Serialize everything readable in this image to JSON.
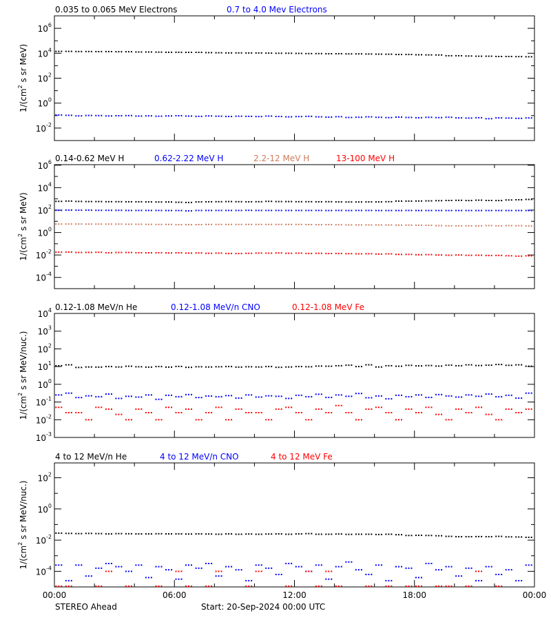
{
  "chart_data": [
    {
      "type": "scatter",
      "yscale": "log",
      "ylabel": "1/(cm^2 s sr MeV)",
      "ylabel_parts": [
        "1/(cm",
        "2",
        " s sr MeV)"
      ],
      "ylim_log10": [
        -3,
        7
      ],
      "ytick_exponents": [
        6,
        4,
        2,
        0,
        -2
      ],
      "series": [
        {
          "name": "0.035 to 0.065 MeV Electrons",
          "color": "#000000",
          "log10_values": [
            4.15,
            4.15,
            4.14,
            4.14,
            4.13,
            4.13,
            4.12,
            4.12,
            4.1,
            4.1,
            4.09,
            4.08,
            4.08,
            4.07,
            4.07,
            4.05,
            4.04,
            4.03,
            4.03,
            4.02,
            4.02,
            4.01,
            4.0,
            4.0,
            3.99,
            3.97,
            3.97,
            3.96,
            3.96,
            3.95,
            3.95,
            3.94,
            3.93,
            3.92,
            3.9,
            3.9,
            3.88,
            3.87,
            3.86,
            3.8,
            3.8,
            3.78,
            3.76,
            3.76,
            3.74,
            3.74,
            3.73,
            3.72
          ]
        },
        {
          "name": "0.7 to 4.0 Mev Electrons",
          "color": "#0000ff",
          "log10_values": [
            -0.95,
            -0.98,
            -1.02,
            -0.99,
            -1.0,
            -1.03,
            -1.01,
            -1.0,
            -1.04,
            -1.02,
            -1.05,
            -1.03,
            -1.01,
            -1.04,
            -1.06,
            -1.03,
            -1.05,
            -1.07,
            -1.05,
            -1.06,
            -1.08,
            -1.04,
            -1.07,
            -1.1,
            -1.08,
            -1.06,
            -1.1,
            -1.12,
            -1.09,
            -1.15,
            -1.13,
            -1.1,
            -1.14,
            -1.16,
            -1.12,
            -1.15,
            -1.17,
            -1.14,
            -1.16,
            -1.13,
            -1.18,
            -1.2,
            -1.17,
            -1.25,
            -1.18,
            -1.2,
            -1.22,
            -1.19
          ]
        }
      ]
    },
    {
      "type": "scatter",
      "yscale": "log",
      "ylabel": "1/(cm^2 s sr MeV)",
      "ylabel_parts": [
        "1/(cm",
        "2",
        " s sr MeV)"
      ],
      "ylim_log10": [
        -5,
        6.05
      ],
      "ytick_exponents": [
        6,
        4,
        2,
        0,
        -2,
        -4
      ],
      "series": [
        {
          "name": "0.14-0.62 MeV H",
          "color": "#000000",
          "log10_values": [
            2.78,
            2.8,
            2.77,
            2.76,
            2.76,
            2.75,
            2.75,
            2.74,
            2.74,
            2.73,
            2.72,
            2.72,
            2.7,
            2.68,
            2.73,
            2.74,
            2.75,
            2.76,
            2.75,
            2.74,
            2.75,
            2.78,
            2.76,
            2.76,
            2.75,
            2.75,
            2.74,
            2.75,
            2.73,
            2.72,
            2.72,
            2.73,
            2.73,
            2.75,
            2.8,
            2.8,
            2.81,
            2.82,
            2.84,
            2.86,
            2.87,
            2.85,
            2.88,
            2.86,
            2.85,
            2.9,
            2.92,
            2.95
          ]
        },
        {
          "name": "0.62-2.22 MeV H",
          "color": "#0000ff",
          "log10_values": [
            1.98,
            2.0,
            1.99,
            1.99,
            1.98,
            1.98,
            1.98,
            1.97,
            1.97,
            1.97,
            1.97,
            1.96,
            1.96,
            1.93,
            1.97,
            1.97,
            1.97,
            1.97,
            1.97,
            1.98,
            1.97,
            1.97,
            1.97,
            1.97,
            1.97,
            1.97,
            1.97,
            1.96,
            1.97,
            1.96,
            1.97,
            1.97,
            1.96,
            1.96,
            1.96,
            1.97,
            1.96,
            1.96,
            1.96,
            1.96,
            1.96,
            1.96,
            1.96,
            1.96,
            1.96,
            1.96,
            1.96,
            1.96
          ]
        },
        {
          "name": "2.2-12 MeV H",
          "color": "#cd7b5c",
          "log10_values": [
            0.76,
            0.76,
            0.76,
            0.75,
            0.75,
            0.75,
            0.75,
            0.74,
            0.74,
            0.73,
            0.72,
            0.72,
            0.7,
            0.7,
            0.71,
            0.72,
            0.72,
            0.72,
            0.72,
            0.72,
            0.72,
            0.72,
            0.72,
            0.72,
            0.72,
            0.71,
            0.7,
            0.7,
            0.69,
            0.68,
            0.68,
            0.68,
            0.67,
            0.67,
            0.66,
            0.66,
            0.65,
            0.64,
            0.62,
            0.6,
            0.6,
            0.6,
            0.59,
            0.62,
            0.6,
            0.62,
            0.61,
            0.58
          ]
        },
        {
          "name": "13-100 MeV H",
          "color": "#ff0000",
          "log10_values": [
            -1.75,
            -1.74,
            -1.78,
            -1.77,
            -1.76,
            -1.8,
            -1.78,
            -1.78,
            -1.8,
            -1.81,
            -1.8,
            -1.82,
            -1.81,
            -1.83,
            -1.82,
            -1.85,
            -1.83,
            -1.86,
            -1.87,
            -1.85,
            -1.83,
            -1.84,
            -1.82,
            -1.85,
            -1.84,
            -1.86,
            -1.85,
            -1.87,
            -1.86,
            -1.88,
            -1.9,
            -1.89,
            -1.92,
            -1.9,
            -1.95,
            -1.95,
            -1.98,
            -1.97,
            -2.0,
            -2.02,
            -2.0,
            -2.03,
            -2.02,
            -2.05,
            -2.04,
            -2.07,
            -2.1,
            -2.08
          ]
        }
      ]
    },
    {
      "type": "scatter",
      "yscale": "log",
      "ylabel": "1/(cm^2 s sr MeV/nuc.)",
      "ylabel_parts": [
        "1/(cm",
        "2",
        " s sr MeV/nuc.)"
      ],
      "ylim_log10": [
        -3,
        4
      ],
      "ytick_exponents": [
        4,
        3,
        2,
        1,
        0,
        -1,
        -2,
        -3
      ],
      "series": [
        {
          "name": "0.12-1.08 MeV/n He",
          "color": "#000000",
          "log10_values": [
            1.05,
            1.1,
            0.95,
            0.98,
            0.97,
            1.0,
            0.98,
            1.02,
            0.99,
            0.97,
            1.0,
            0.97,
            1.01,
            0.96,
            0.99,
            0.98,
            0.99,
            1.0,
            0.97,
            0.99,
            0.98,
            1.0,
            0.96,
            0.98,
            1.0,
            0.99,
            1.03,
            1.02,
            1.05,
            1.08,
            1.0,
            1.1,
            0.98,
            1.05,
            1.02,
            1.07,
            1.04,
            1.06,
            1.03,
            1.08,
            1.05,
            1.1,
            1.06,
            1.08,
            1.12,
            1.07,
            1.1,
            1.02
          ]
        },
        {
          "name": "0.12-1.08 MeV/n CNO",
          "color": "#0000ff",
          "log10_values": [
            -0.6,
            -0.5,
            -0.75,
            -0.65,
            -0.7,
            -0.55,
            -0.8,
            -0.68,
            -0.72,
            -0.6,
            -0.85,
            -0.62,
            -0.7,
            -0.58,
            -0.75,
            -0.66,
            -0.7,
            -0.64,
            -0.78,
            -0.6,
            -0.72,
            -0.65,
            -0.68,
            -0.8,
            -0.62,
            -0.7,
            -0.56,
            -0.74,
            -0.6,
            -0.68,
            -0.52,
            -0.76,
            -0.66,
            -0.82,
            -0.62,
            -0.7,
            -0.6,
            -0.74,
            -0.58,
            -0.66,
            -0.72,
            -0.6,
            -0.68,
            -0.55,
            -0.7,
            -0.62,
            -0.78,
            -0.5
          ]
        },
        {
          "name": "0.12-1.08 MeV Fe",
          "color": "#ff0000",
          "log10_values": [
            -1.3,
            -1.6,
            -1.6,
            -2.0,
            -1.3,
            -1.4,
            -1.7,
            -2.0,
            -1.4,
            -1.6,
            -2.0,
            -1.3,
            -1.6,
            -1.4,
            -2.0,
            -1.6,
            -1.3,
            -2.0,
            -1.4,
            -1.6,
            -1.6,
            -2.0,
            -1.4,
            -1.3,
            -1.6,
            -2.0,
            -1.4,
            -1.6,
            -1.2,
            -1.6,
            -2.0,
            -1.4,
            -1.3,
            -1.6,
            -2.0,
            -1.4,
            -1.6,
            -1.3,
            -1.7,
            -2.0,
            -1.4,
            -1.6,
            -1.3,
            -1.7,
            -2.0,
            -1.4,
            -1.6,
            -1.4
          ]
        }
      ]
    },
    {
      "type": "scatter",
      "yscale": "log",
      "ylabel": "1/(cm^2 s sr MeV/nuc.)",
      "ylabel_parts": [
        "1/(cm",
        "2",
        " s sr MeV/nuc.)"
      ],
      "ylim_log10": [
        -5,
        2.95
      ],
      "ytick_exponents": [
        2,
        0,
        -2,
        -4
      ],
      "series": [
        {
          "name": "4 to 12 MeV/n He",
          "color": "#000000",
          "log10_values": [
            -1.55,
            -1.57,
            -1.58,
            -1.57,
            -1.58,
            -1.6,
            -1.58,
            -1.59,
            -1.6,
            -1.6,
            -1.59,
            -1.6,
            -1.6,
            -1.61,
            -1.6,
            -1.61,
            -1.62,
            -1.6,
            -1.62,
            -1.61,
            -1.62,
            -1.61,
            -1.6,
            -1.62,
            -1.6,
            -1.58,
            -1.62,
            -1.62,
            -1.61,
            -1.63,
            -1.62,
            -1.62,
            -1.64,
            -1.62,
            -1.65,
            -1.7,
            -1.69,
            -1.7,
            -1.72,
            -1.76,
            -1.78,
            -1.78,
            -1.77,
            -1.78,
            -1.76,
            -1.79,
            -1.8,
            -1.82
          ]
        },
        {
          "name": "4 to 12 MeV/n CNO",
          "color": "#0000ff",
          "log10_values": [
            -3.6,
            -4.6,
            -3.6,
            -4.3,
            -3.8,
            -3.5,
            -3.7,
            -4.0,
            -3.6,
            -4.4,
            -3.7,
            -3.9,
            -4.5,
            -3.6,
            -3.8,
            -3.5,
            -4.3,
            -3.7,
            -3.9,
            -4.6,
            -3.6,
            -3.8,
            -4.2,
            -3.5,
            -3.7,
            -4.0,
            -3.6,
            -4.5,
            -3.7,
            -3.4,
            -3.9,
            -4.2,
            -3.6,
            -4.6,
            -3.7,
            -3.8,
            -4.4,
            -3.5,
            -3.9,
            -3.7,
            -4.3,
            -3.8,
            -4.6,
            -3.7,
            -4.2,
            -3.9,
            -4.6,
            -3.6
          ]
        },
        {
          "name": "4 to 12 MeV Fe",
          "color": "#ff0000",
          "log10_values": [
            -4.95,
            -4.95,
            null,
            null,
            -4.95,
            -4.0,
            null,
            -4.95,
            null,
            null,
            -4.95,
            null,
            -4.0,
            -4.95,
            null,
            -4.95,
            -4.0,
            null,
            null,
            -4.95,
            -4.0,
            null,
            null,
            -4.95,
            null,
            -4.0,
            -4.95,
            -4.0,
            -4.95,
            null,
            null,
            -4.95,
            null,
            -4.95,
            null,
            -4.95,
            -4.95,
            null,
            -4.95,
            -4.95,
            null,
            -4.95,
            -4.0,
            null,
            -4.95,
            null,
            null,
            null
          ]
        }
      ]
    }
  ],
  "x_axis": {
    "range_hours": [
      0,
      24
    ],
    "tick_labels": [
      "00:00",
      "06:00",
      "12:00",
      "18:00",
      "00:00"
    ],
    "sample_interval_hours": 0.5
  },
  "footer": {
    "spacecraft": "STEREO Ahead",
    "start": "Start: 20-Sep-2024 00:00 UTC"
  }
}
